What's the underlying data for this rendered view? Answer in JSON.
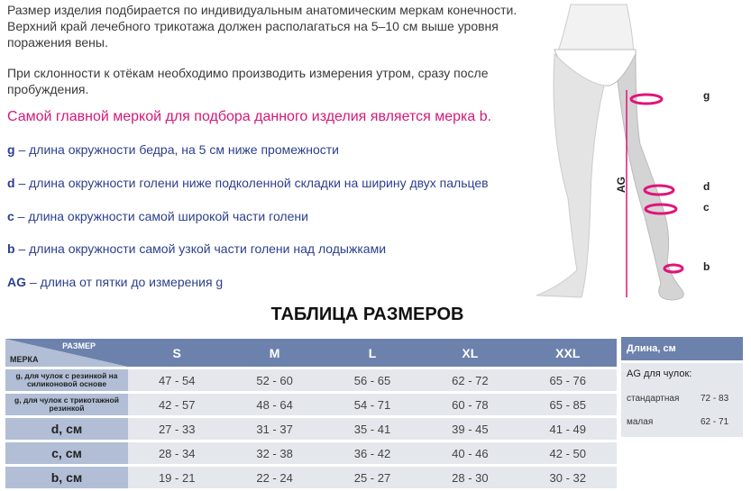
{
  "text": {
    "p1": "Размер изделия подбирается по индивидуальным анатомическим меркам конечности. Верхний край лечебного трикотажа должен располагаться на 5–10 см выше уровня поражения вены.",
    "p2": "При склонности к отёкам необходимо производить измерения утром, сразу после пробуждения.",
    "highlight": "Самой главной меркой для подбора данного изделия является мерка b.",
    "measures": [
      {
        "key": "g",
        "desc": " – длина окружности бедра, на 5 см ниже промежности"
      },
      {
        "key": "d",
        "desc": " – длина окружности голени ниже подколенной складки на ширину двух пальцев"
      },
      {
        "key": "c",
        "desc": " – длина окружности самой широкой части голени"
      },
      {
        "key": "b",
        "desc": " – длина окружности самой узкой части голени над лодыжками"
      },
      {
        "key": "AG",
        "desc": " – длина от пятки до измерения g"
      }
    ]
  },
  "figure": {
    "labels": {
      "g": "g",
      "d": "d",
      "c": "c",
      "b": "b",
      "ag": "AG"
    },
    "accent": "#e0157a"
  },
  "table": {
    "title": "ТАБЛИЦА РАЗМЕРОВ",
    "corner_size": "РАЗМЕР",
    "corner_measure": "МЕРКА",
    "sizes": [
      "S",
      "M",
      "L",
      "XL",
      "XXL"
    ],
    "rows": [
      {
        "label": "g, для чулок с  резинкой на силиконовой основе",
        "values": [
          "47 - 54",
          "52 - 60",
          "56 - 65",
          "62 - 72",
          "65 - 76"
        ]
      },
      {
        "label": "g, для чулок с трикотажной резинкой",
        "values": [
          "42 - 57",
          "48 - 64",
          "54 - 71",
          "60 - 78",
          "65 - 85"
        ]
      },
      {
        "label": "d, см",
        "values": [
          "27 - 33",
          "31 - 37",
          "35 - 41",
          "39 - 45",
          "41 - 49"
        ]
      },
      {
        "label": "c, см",
        "values": [
          "28 - 34",
          "32 - 38",
          "36 - 42",
          "40 - 46",
          "42 - 50"
        ]
      },
      {
        "label": "b, см",
        "values": [
          "19 - 21",
          "22 - 24",
          "25 - 27",
          "28 - 30",
          "30 - 32"
        ]
      }
    ]
  },
  "length": {
    "header": "Длина, см",
    "subtitle": "AG для чулок:",
    "rows": [
      {
        "name": "стандартная",
        "value": "72 - 83"
      },
      {
        "name": "малая",
        "value": "62 - 71"
      }
    ]
  }
}
